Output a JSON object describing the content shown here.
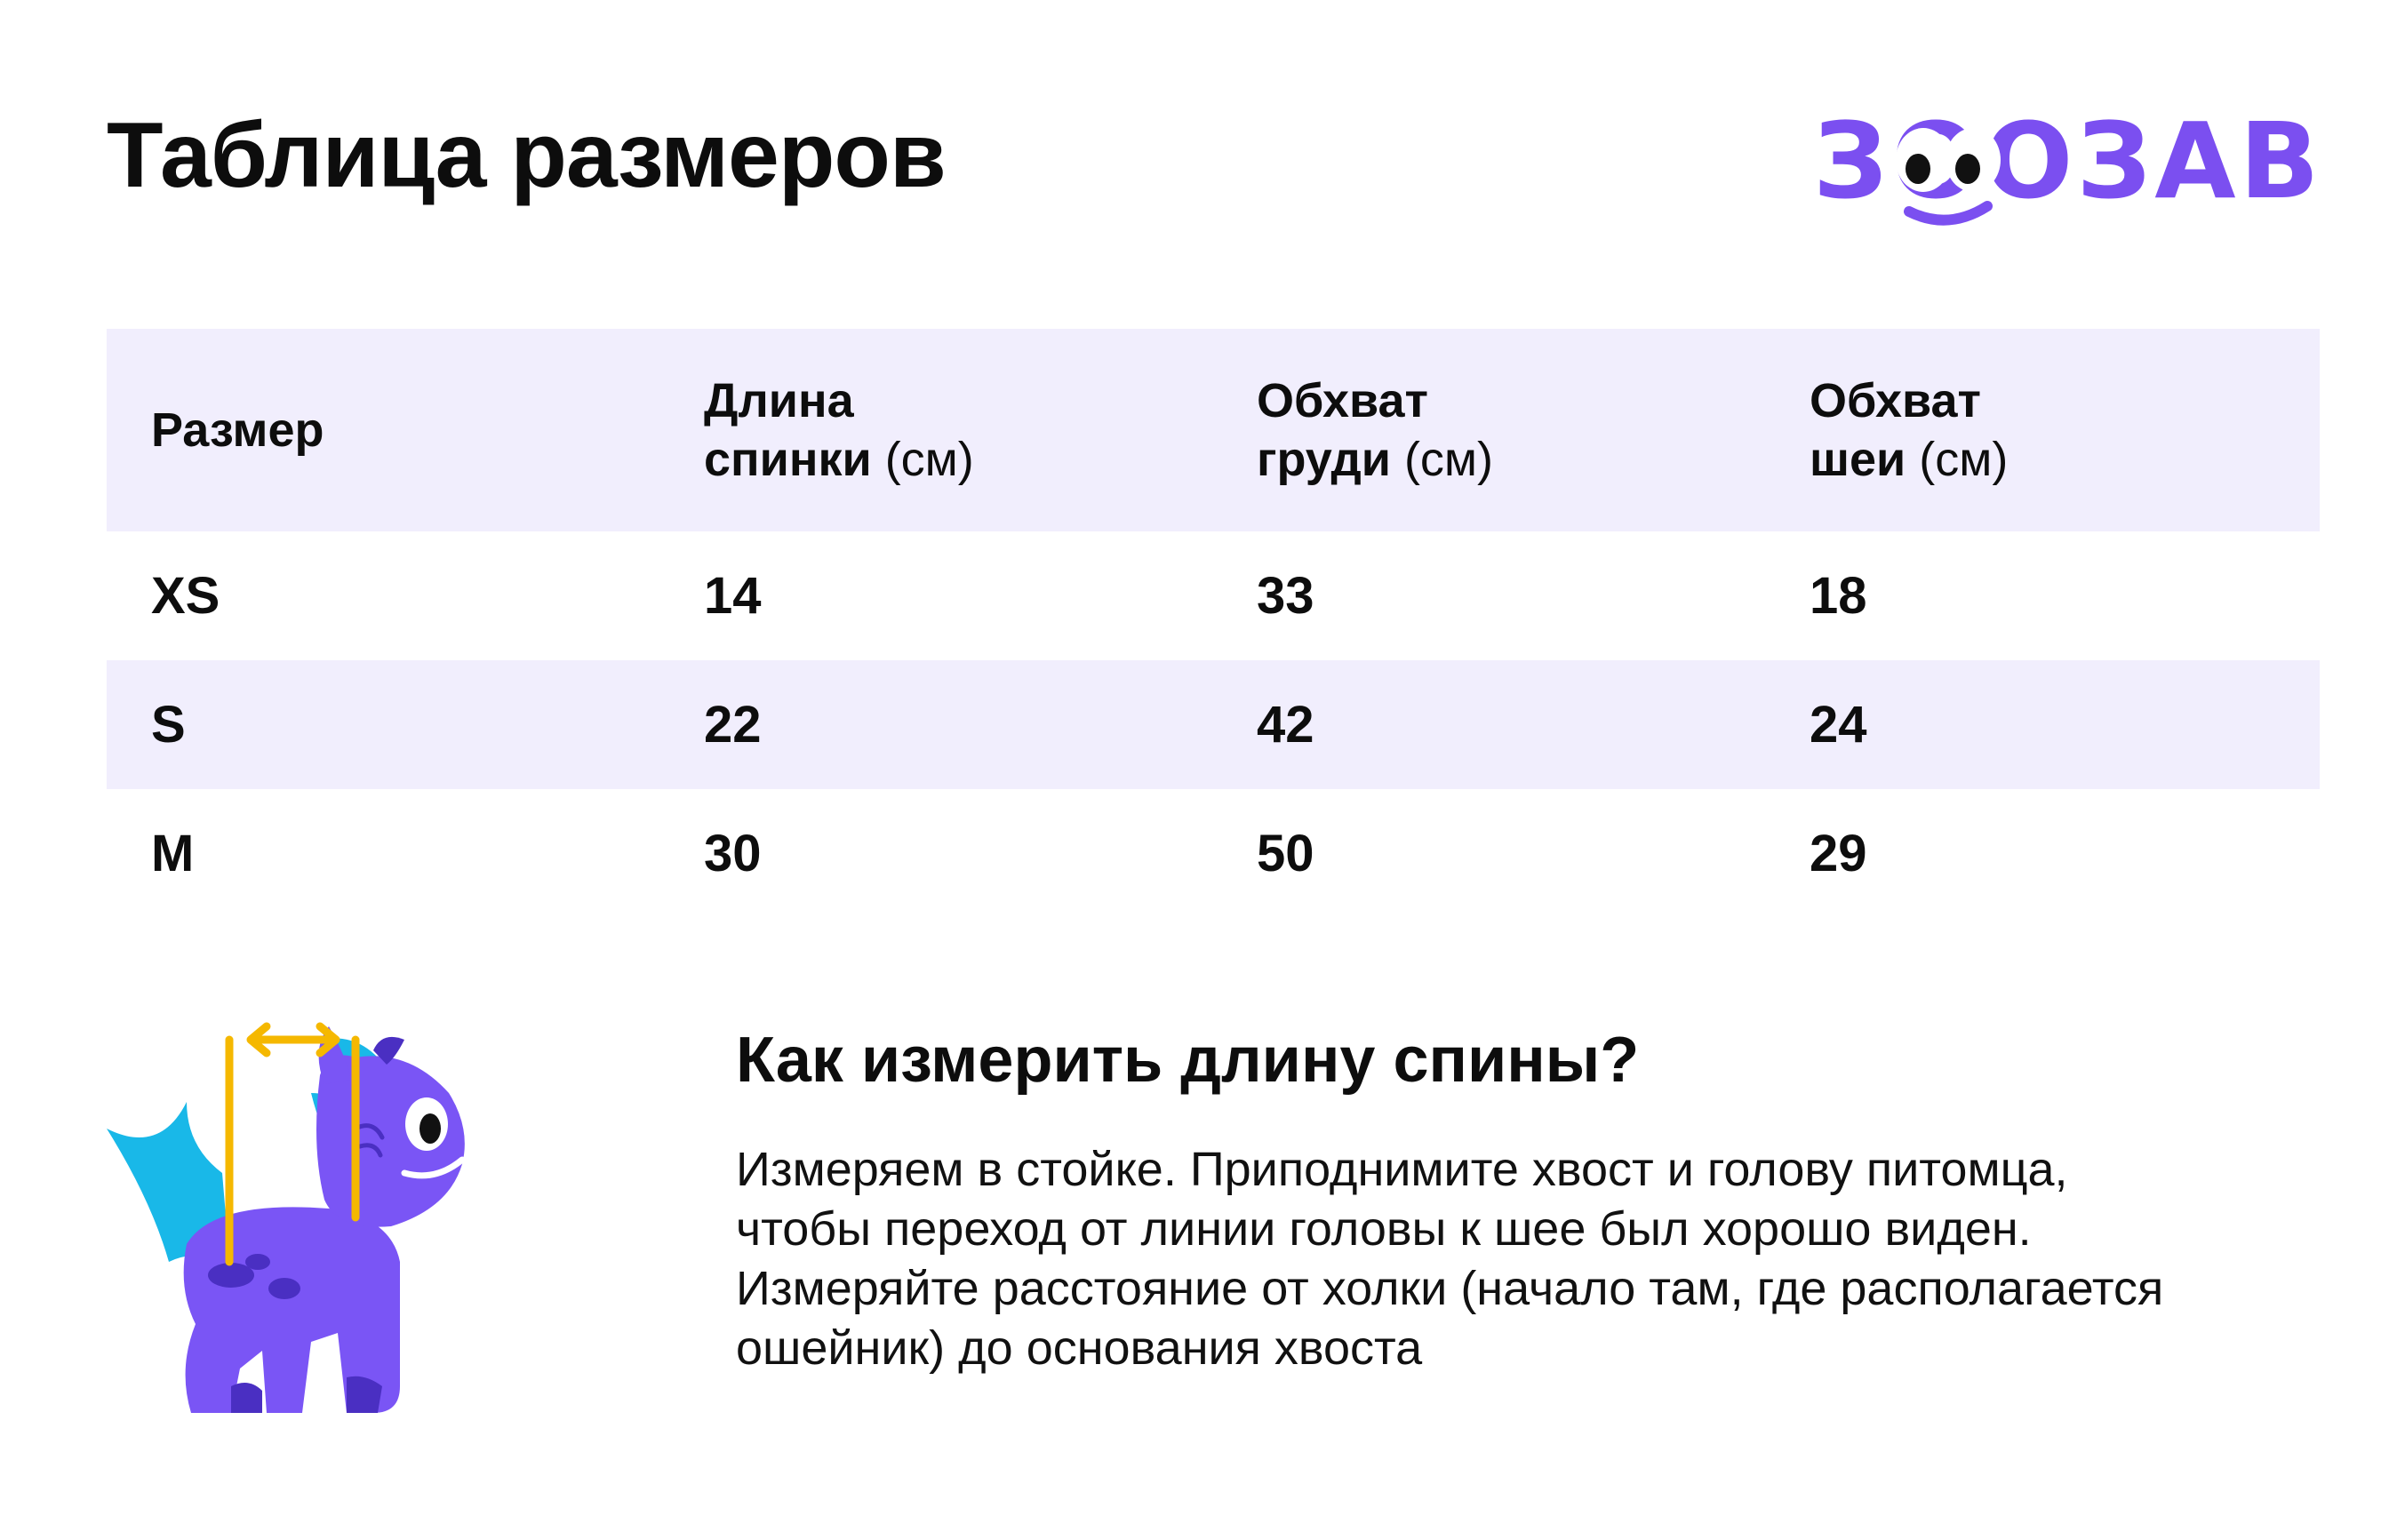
{
  "page": {
    "title": "Таблица размеров",
    "brand": "ЗООЗАВР",
    "accent_color": "#7b4ff0",
    "row_highlight_color": "#f1eefd"
  },
  "table": {
    "headers": [
      {
        "main": "Размер",
        "unit": ""
      },
      {
        "main": "Длина\nспинки",
        "unit": "(см)"
      },
      {
        "main": "Обхват\nгруди",
        "unit": "(см)"
      },
      {
        "main": "Обхват\nшеи",
        "unit": "(см)"
      }
    ],
    "rows": [
      {
        "size": "XS",
        "back": "14",
        "chest": "33",
        "neck": "18"
      },
      {
        "size": "S",
        "back": "22",
        "chest": "42",
        "neck": "24"
      },
      {
        "size": "M",
        "back": "30",
        "chest": "50",
        "neck": "29"
      }
    ]
  },
  "howto": {
    "title": "Как измерить длину спины?",
    "text": "Измеряем в стойке. Приподнимите хвост и голову питомца, чтобы переход от линии головы к шее был хорошо виден. Измеряйте расстояние от холки (начало там, где располагается ошейник) до основания хвоста"
  },
  "illustration": {
    "icon": "dino-mascot-icon",
    "measure_icon": "double-arrow-icon"
  }
}
